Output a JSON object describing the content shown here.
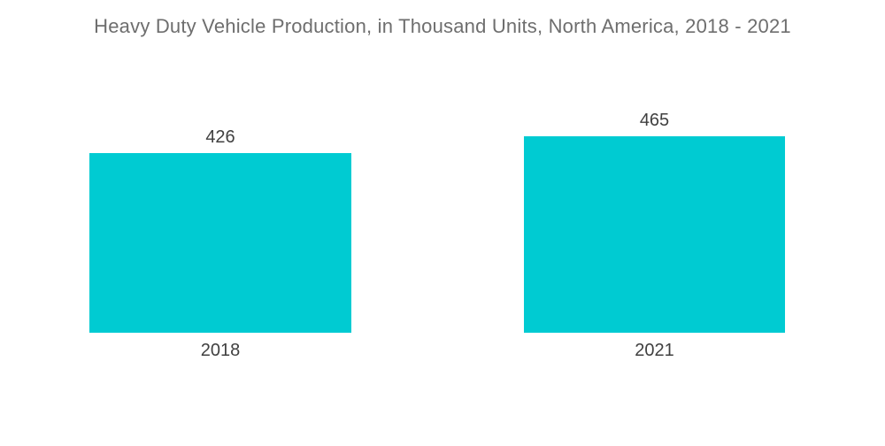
{
  "chart_data": {
    "type": "bar",
    "title": "Heavy Duty Vehicle Production, in Thousand Units, North America, 2018 - 2021",
    "categories": [
      "2018",
      "2021"
    ],
    "values": [
      426,
      465
    ],
    "xlabel": "",
    "ylabel": "",
    "ylim": [
      0,
      465
    ],
    "grid": false,
    "legend": false,
    "orientation": "vertical",
    "bar_color": "#00CBD2"
  },
  "colors": {
    "bar": "#00CBD2",
    "title_text": "#6e6e6e",
    "label_text": "#404040",
    "background": "#ffffff"
  }
}
